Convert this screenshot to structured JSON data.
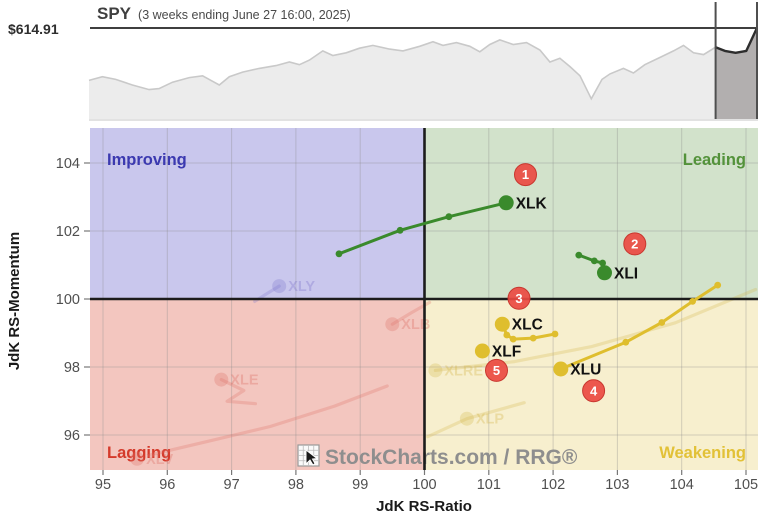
{
  "header": {
    "price_label": "$614.91",
    "symbol": "SPY",
    "subtitle": "(3 weeks ending June 27 16:00, 2025)"
  },
  "watermark": {
    "text": "StockCharts.com / RRG®",
    "icon": "stockcharts-grid-cursor-icon",
    "color": "#8e8e8e"
  },
  "chart_data": [
    {
      "type": "area",
      "name": "spy-price-sparkline",
      "title": "SPY",
      "price_level_label": "$614.91",
      "window_start": 0.938,
      "colors": {
        "fill": "#ececec",
        "stroke": "#c9c9c9",
        "window_fill": "#b2afaf",
        "window_stroke": "#2d2d2d",
        "price_line": "#3f3f3f",
        "boundary": "#4f4f4f"
      },
      "points": [
        [
          0.0,
          0.42
        ],
        [
          0.02,
          0.46
        ],
        [
          0.04,
          0.43
        ],
        [
          0.065,
          0.37
        ],
        [
          0.09,
          0.32
        ],
        [
          0.105,
          0.33
        ],
        [
          0.125,
          0.4
        ],
        [
          0.15,
          0.45
        ],
        [
          0.17,
          0.47
        ],
        [
          0.185,
          0.41
        ],
        [
          0.195,
          0.37
        ],
        [
          0.21,
          0.46
        ],
        [
          0.23,
          0.51
        ],
        [
          0.255,
          0.55
        ],
        [
          0.28,
          0.58
        ],
        [
          0.3,
          0.62
        ],
        [
          0.315,
          0.59
        ],
        [
          0.33,
          0.64
        ],
        [
          0.35,
          0.74
        ],
        [
          0.365,
          0.69
        ],
        [
          0.385,
          0.72
        ],
        [
          0.405,
          0.77
        ],
        [
          0.425,
          0.8
        ],
        [
          0.45,
          0.76
        ],
        [
          0.47,
          0.74
        ],
        [
          0.495,
          0.79
        ],
        [
          0.515,
          0.84
        ],
        [
          0.53,
          0.8
        ],
        [
          0.55,
          0.83
        ],
        [
          0.57,
          0.79
        ],
        [
          0.585,
          0.73
        ],
        [
          0.6,
          0.81
        ],
        [
          0.615,
          0.86
        ],
        [
          0.635,
          0.81
        ],
        [
          0.655,
          0.83
        ],
        [
          0.675,
          0.75
        ],
        [
          0.69,
          0.62
        ],
        [
          0.705,
          0.66
        ],
        [
          0.72,
          0.57
        ],
        [
          0.735,
          0.47
        ],
        [
          0.752,
          0.22
        ],
        [
          0.768,
          0.43
        ],
        [
          0.78,
          0.49
        ],
        [
          0.8,
          0.55
        ],
        [
          0.815,
          0.5
        ],
        [
          0.832,
          0.59
        ],
        [
          0.855,
          0.67
        ],
        [
          0.875,
          0.74
        ],
        [
          0.89,
          0.8
        ],
        [
          0.905,
          0.72
        ],
        [
          0.92,
          0.7
        ],
        [
          0.938,
          0.78
        ],
        [
          0.952,
          0.74
        ],
        [
          0.968,
          0.72
        ],
        [
          0.984,
          0.74
        ],
        [
          1.0,
          0.99
        ]
      ]
    },
    {
      "type": "scatter",
      "name": "rrg-rotation-chart",
      "xlabel": "JdK RS-Ratio",
      "ylabel": "JdK RS-Momentum",
      "xlim": [
        94.8,
        105.19
      ],
      "ylim": [
        94.97,
        105.03
      ],
      "x_ticks": [
        95,
        96,
        97,
        98,
        99,
        100,
        101,
        102,
        103,
        104,
        105
      ],
      "y_ticks": [
        96,
        98,
        100,
        102,
        104
      ],
      "grid": true,
      "grid_color": "#8a8a8a",
      "center_line_color": "#1c1c1c",
      "tick_color": "#4f4f4f",
      "quadrants": [
        {
          "id": "improving",
          "label": "Improving",
          "bg": "#c9c7ed",
          "label_color": "#3b39b0",
          "position": "top-left"
        },
        {
          "id": "leading",
          "label": "Leading",
          "bg": "#d2e2cb",
          "label_color": "#53923a",
          "position": "top-right"
        },
        {
          "id": "lagging",
          "label": "Lagging",
          "bg": "#f3c6bf",
          "label_color": "#d43a2b",
          "position": "bottom-left"
        },
        {
          "id": "weakening",
          "label": "Weakening",
          "bg": "#f7efce",
          "label_color": "#e2c137",
          "position": "bottom-right"
        }
      ],
      "sectors": [
        {
          "symbol": "XLK",
          "color": "#3a8a2c",
          "points": [
            [
              98.67,
              101.33
            ],
            [
              99.62,
              102.02
            ],
            [
              100.38,
              102.42
            ],
            [
              101.27,
              102.83
            ]
          ]
        },
        {
          "symbol": "XLI",
          "color": "#3a8a2c",
          "points": [
            [
              102.4,
              101.29
            ],
            [
              102.64,
              101.12
            ],
            [
              102.77,
              101.06
            ],
            [
              102.8,
              100.77
            ]
          ]
        },
        {
          "symbol": "XLC",
          "color": "#dfbe2e",
          "points": [
            [
              102.03,
              98.97
            ],
            [
              101.69,
              98.85
            ],
            [
              101.38,
              98.82
            ],
            [
              101.28,
              98.94
            ],
            [
              101.21,
              99.26
            ]
          ]
        },
        {
          "symbol": "XLF",
          "color": "#dfbe2e",
          "points": [
            [
              100.9,
              98.47
            ]
          ]
        },
        {
          "symbol": "XLU",
          "color": "#dfbe2e",
          "points": [
            [
              104.56,
              100.41
            ],
            [
              104.17,
              99.93
            ],
            [
              103.69,
              99.31
            ],
            [
              103.13,
              98.73
            ],
            [
              102.12,
              97.94
            ]
          ]
        }
      ],
      "badges": [
        {
          "n": "1",
          "x": 101.57,
          "y": 103.66
        },
        {
          "n": "2",
          "x": 103.27,
          "y": 101.62
        },
        {
          "n": "3",
          "x": 101.47,
          "y": 100.02
        },
        {
          "n": "4",
          "x": 102.63,
          "y": 97.3
        },
        {
          "n": "5",
          "x": 101.12,
          "y": 97.9
        }
      ],
      "badge_colors": {
        "fill": "#ea4a42",
        "ring": "#c8372f",
        "text": "#ffffff"
      },
      "faded_sectors": [
        {
          "symbol": "XLY",
          "color": "#7d76cc",
          "dot": [
            97.74,
            100.38
          ],
          "tail": [
            [
              97.36,
              99.93
            ],
            [
              97.56,
              100.17
            ],
            [
              97.74,
              100.38
            ]
          ]
        },
        {
          "symbol": "XLB",
          "color": "#dd7166",
          "dot": [
            99.5,
            99.26
          ],
          "tail": [
            [
              99.5,
              99.26
            ],
            [
              99.8,
              99.6
            ],
            [
              100.08,
              99.9
            ]
          ]
        },
        {
          "symbol": "XLE",
          "color": "#dd7166",
          "dot": [
            96.84,
            97.63
          ],
          "tail": [
            [
              96.84,
              97.63
            ],
            [
              97.19,
              97.31
            ],
            [
              96.93,
              96.99
            ],
            [
              97.37,
              96.92
            ]
          ]
        },
        {
          "symbol": "XLV",
          "color": "#dd7166",
          "dot": [
            95.53,
            95.3
          ],
          "tail": [
            [
              95.75,
              95.42
            ],
            [
              96.6,
              95.8
            ],
            [
              97.6,
              96.25
            ],
            [
              98.6,
              96.85
            ],
            [
              99.42,
              97.44
            ]
          ]
        },
        {
          "symbol": "XLRE",
          "color": "#d3b84d",
          "dot": [
            100.17,
            97.9
          ],
          "tail": [
            [
              100.17,
              97.9
            ],
            [
              101.4,
              98.16
            ],
            [
              102.6,
              98.6
            ],
            [
              103.9,
              99.3
            ],
            [
              105.15,
              100.28
            ]
          ]
        },
        {
          "symbol": "XLP",
          "color": "#d3b84d",
          "dot": [
            100.66,
            96.48
          ],
          "tail": [
            [
              100.05,
              95.95
            ],
            [
              100.66,
              96.48
            ],
            [
              101.55,
              96.95
            ]
          ]
        }
      ]
    }
  ]
}
